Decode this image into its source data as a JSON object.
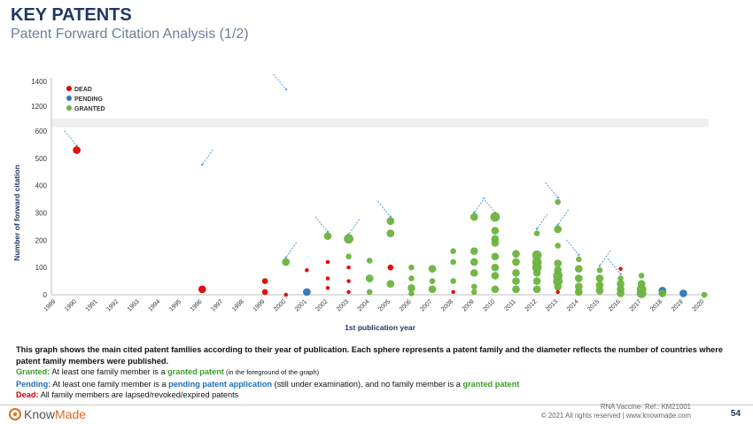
{
  "header": {
    "title": "KEY PATENTS",
    "subtitle": "Patent Forward Citation Analysis (1/2)"
  },
  "description": {
    "line1": "This graph shows the main cited patent families according to their year of publication. Each sphere represents a patent family and the diameter reflects the number of countries where patent family members were published.",
    "granted_label": "Granted:",
    "granted_text_a": " At least one family member is a ",
    "granted_term": "granted patent",
    "granted_note": " (in the foreground of the graph)",
    "pending_label": "Pending:",
    "pending_text_a": " At least one family member is a ",
    "pending_term": "pending patent application",
    "pending_text_b": " (still under examination), and no family member is a ",
    "pending_term2": "granted patent",
    "dead_label": "Dead:",
    "dead_text": " All family members are lapsed/revoked/expired patents"
  },
  "footer": {
    "logo_prefix": "Know",
    "logo_suffix": "Made",
    "ref_line1": "RNA Vaccine- Ref.: KM21001",
    "ref_line2": "© 2021 All rights reserved | www.knowmade.com",
    "page": "54"
  },
  "colors": {
    "granted": "#6cb33f",
    "pending": "#2e75b6",
    "dead": "#e00000",
    "axis": "#333333",
    "title": "#1f3864"
  },
  "chart_data": {
    "type": "scatter",
    "xlabel": "1st publication year",
    "ylabel": "Number of forward citation",
    "x_ticks": [
      "1989",
      "1990",
      "1991",
      "1992",
      "1993",
      "1994",
      "1995",
      "1996",
      "1997",
      "1998",
      "1999",
      "2000",
      "2001",
      "2002",
      "2003",
      "2004",
      "2005",
      "2006",
      "2007",
      "2008",
      "2009",
      "2010",
      "2011",
      "2012",
      "2013",
      "2014",
      "2015",
      "2016",
      "2017",
      "2018",
      "2019",
      "2020"
    ],
    "y_ticks_lower": [
      0,
      100,
      200,
      300,
      400,
      500,
      600
    ],
    "y_ticks_upper": [
      1200,
      1400
    ],
    "axis_break": "between 600 and 1200",
    "legend": {
      "position": "top-left",
      "entries": [
        {
          "name": "DEAD",
          "color": "#e00000"
        },
        {
          "name": "PENDING",
          "color": "#2e75b6"
        },
        {
          "name": "GRANTED",
          "color": "#6cb33f"
        }
      ]
    },
    "points": [
      {
        "x": 1990,
        "y": 530,
        "status": "dead",
        "size": 3
      },
      {
        "x": 1996,
        "y": 20,
        "status": "dead",
        "size": 3
      },
      {
        "x": 1999,
        "y": 50,
        "status": "dead",
        "size": 2
      },
      {
        "x": 1999,
        "y": 10,
        "status": "dead",
        "size": 2
      },
      {
        "x": 2000,
        "y": 120,
        "status": "granted",
        "size": 3
      },
      {
        "x": 2000,
        "y": 0,
        "status": "dead",
        "size": 1
      },
      {
        "x": 2001,
        "y": 90,
        "status": "dead",
        "size": 1
      },
      {
        "x": 2001,
        "y": 10,
        "status": "pending",
        "size": 3
      },
      {
        "x": 2002,
        "y": 215,
        "status": "granted",
        "size": 3
      },
      {
        "x": 2002,
        "y": 120,
        "status": "dead",
        "size": 1
      },
      {
        "x": 2002,
        "y": 60,
        "status": "dead",
        "size": 1
      },
      {
        "x": 2002,
        "y": 25,
        "status": "dead",
        "size": 1
      },
      {
        "x": 2003,
        "y": 205,
        "status": "granted",
        "size": 4
      },
      {
        "x": 2003,
        "y": 140,
        "status": "granted",
        "size": 2
      },
      {
        "x": 2003,
        "y": 100,
        "status": "dead",
        "size": 1
      },
      {
        "x": 2003,
        "y": 50,
        "status": "dead",
        "size": 1
      },
      {
        "x": 2003,
        "y": 10,
        "status": "dead",
        "size": 1
      },
      {
        "x": 2004,
        "y": 125,
        "status": "granted",
        "size": 2
      },
      {
        "x": 2004,
        "y": 60,
        "status": "granted",
        "size": 3
      },
      {
        "x": 2004,
        "y": 10,
        "status": "granted",
        "size": 2
      },
      {
        "x": 2005,
        "y": 270,
        "status": "granted",
        "size": 3
      },
      {
        "x": 2005,
        "y": 225,
        "status": "granted",
        "size": 3
      },
      {
        "x": 2005,
        "y": 100,
        "status": "dead",
        "size": 2
      },
      {
        "x": 2005,
        "y": 40,
        "status": "granted",
        "size": 3
      },
      {
        "x": 2006,
        "y": 100,
        "status": "granted",
        "size": 2
      },
      {
        "x": 2006,
        "y": 60,
        "status": "granted",
        "size": 2
      },
      {
        "x": 2006,
        "y": 25,
        "status": "granted",
        "size": 3
      },
      {
        "x": 2006,
        "y": 5,
        "status": "granted",
        "size": 2
      },
      {
        "x": 2007,
        "y": 95,
        "status": "granted",
        "size": 3
      },
      {
        "x": 2007,
        "y": 50,
        "status": "granted",
        "size": 2
      },
      {
        "x": 2007,
        "y": 20,
        "status": "granted",
        "size": 3
      },
      {
        "x": 2008,
        "y": 160,
        "status": "granted",
        "size": 2
      },
      {
        "x": 2008,
        "y": 120,
        "status": "granted",
        "size": 2
      },
      {
        "x": 2008,
        "y": 50,
        "status": "granted",
        "size": 2
      },
      {
        "x": 2008,
        "y": 10,
        "status": "dead",
        "size": 1
      },
      {
        "x": 2009,
        "y": 285,
        "status": "granted",
        "size": 3
      },
      {
        "x": 2009,
        "y": 160,
        "status": "granted",
        "size": 3
      },
      {
        "x": 2009,
        "y": 120,
        "status": "granted",
        "size": 3
      },
      {
        "x": 2009,
        "y": 80,
        "status": "granted",
        "size": 3
      },
      {
        "x": 2009,
        "y": 30,
        "status": "granted",
        "size": 2
      },
      {
        "x": 2009,
        "y": 10,
        "status": "granted",
        "size": 2
      },
      {
        "x": 2010,
        "y": 285,
        "status": "granted",
        "size": 4
      },
      {
        "x": 2010,
        "y": 235,
        "status": "granted",
        "size": 3
      },
      {
        "x": 2010,
        "y": 205,
        "status": "granted",
        "size": 3
      },
      {
        "x": 2010,
        "y": 190,
        "status": "granted",
        "size": 3
      },
      {
        "x": 2010,
        "y": 140,
        "status": "granted",
        "size": 3
      },
      {
        "x": 2010,
        "y": 100,
        "status": "granted",
        "size": 3
      },
      {
        "x": 2010,
        "y": 70,
        "status": "granted",
        "size": 3
      },
      {
        "x": 2010,
        "y": 20,
        "status": "granted",
        "size": 3
      },
      {
        "x": 2011,
        "y": 150,
        "status": "granted",
        "size": 3
      },
      {
        "x": 2011,
        "y": 120,
        "status": "granted",
        "size": 3
      },
      {
        "x": 2011,
        "y": 80,
        "status": "granted",
        "size": 3
      },
      {
        "x": 2011,
        "y": 50,
        "status": "granted",
        "size": 3
      },
      {
        "x": 2011,
        "y": 20,
        "status": "granted",
        "size": 3
      },
      {
        "x": 2012,
        "y": 225,
        "status": "granted",
        "size": 2
      },
      {
        "x": 2012,
        "y": 145,
        "status": "granted",
        "size": 4
      },
      {
        "x": 2012,
        "y": 120,
        "status": "granted",
        "size": 4
      },
      {
        "x": 2012,
        "y": 100,
        "status": "granted",
        "size": 4
      },
      {
        "x": 2012,
        "y": 80,
        "status": "granted",
        "size": 3
      },
      {
        "x": 2012,
        "y": 50,
        "status": "granted",
        "size": 3
      },
      {
        "x": 2012,
        "y": 20,
        "status": "granted",
        "size": 3
      },
      {
        "x": 2013,
        "y": 340,
        "status": "granted",
        "size": 2
      },
      {
        "x": 2013,
        "y": 240,
        "status": "granted",
        "size": 3
      },
      {
        "x": 2013,
        "y": 180,
        "status": "granted",
        "size": 2
      },
      {
        "x": 2013,
        "y": 115,
        "status": "granted",
        "size": 3
      },
      {
        "x": 2013,
        "y": 90,
        "status": "granted",
        "size": 3
      },
      {
        "x": 2013,
        "y": 70,
        "status": "granted",
        "size": 4
      },
      {
        "x": 2013,
        "y": 50,
        "status": "granted",
        "size": 4
      },
      {
        "x": 2013,
        "y": 30,
        "status": "granted",
        "size": 3
      },
      {
        "x": 2013,
        "y": 10,
        "status": "dead",
        "size": 1
      },
      {
        "x": 2014,
        "y": 130,
        "status": "granted",
        "size": 2
      },
      {
        "x": 2014,
        "y": 95,
        "status": "granted",
        "size": 3
      },
      {
        "x": 2014,
        "y": 60,
        "status": "granted",
        "size": 3
      },
      {
        "x": 2014,
        "y": 30,
        "status": "granted",
        "size": 3
      },
      {
        "x": 2014,
        "y": 10,
        "status": "granted",
        "size": 3
      },
      {
        "x": 2015,
        "y": 90,
        "status": "granted",
        "size": 2
      },
      {
        "x": 2015,
        "y": 60,
        "status": "granted",
        "size": 3
      },
      {
        "x": 2015,
        "y": 35,
        "status": "granted",
        "size": 3
      },
      {
        "x": 2015,
        "y": 15,
        "status": "granted",
        "size": 3
      },
      {
        "x": 2016,
        "y": 95,
        "status": "dead",
        "size": 1
      },
      {
        "x": 2016,
        "y": 60,
        "status": "granted",
        "size": 2
      },
      {
        "x": 2016,
        "y": 40,
        "status": "granted",
        "size": 3
      },
      {
        "x": 2016,
        "y": 20,
        "status": "granted",
        "size": 3
      },
      {
        "x": 2016,
        "y": 5,
        "status": "granted",
        "size": 3
      },
      {
        "x": 2017,
        "y": 70,
        "status": "granted",
        "size": 2
      },
      {
        "x": 2017,
        "y": 40,
        "status": "granted",
        "size": 3
      },
      {
        "x": 2017,
        "y": 20,
        "status": "granted",
        "size": 4
      },
      {
        "x": 2017,
        "y": 5,
        "status": "granted",
        "size": 4
      },
      {
        "x": 2018,
        "y": 15,
        "status": "pending",
        "size": 3
      },
      {
        "x": 2018,
        "y": 5,
        "status": "granted",
        "size": 3
      },
      {
        "x": 2019,
        "y": 5,
        "status": "pending",
        "size": 3
      },
      {
        "x": 2020,
        "y": 0,
        "status": "granted",
        "size": 2
      }
    ],
    "annotations": [
      {
        "target": [
          1990,
          530
        ]
      },
      {
        "target": [
          1996,
          460
        ]
      },
      {
        "target": [
          2000,
          1300
        ]
      },
      {
        "target": [
          2000,
          120
        ]
      },
      {
        "target": [
          2002,
          215
        ]
      },
      {
        "target": [
          2003,
          205
        ]
      },
      {
        "target": [
          2005,
          270
        ]
      },
      {
        "target": [
          2009,
          285
        ]
      },
      {
        "target": [
          2010,
          285
        ]
      },
      {
        "target": [
          2012,
          225
        ]
      },
      {
        "target": [
          2013,
          340
        ]
      },
      {
        "target": [
          2013,
          240
        ]
      },
      {
        "target": [
          2014,
          130
        ]
      },
      {
        "target": [
          2015,
          90
        ]
      },
      {
        "target": [
          2016,
          60
        ]
      }
    ]
  }
}
